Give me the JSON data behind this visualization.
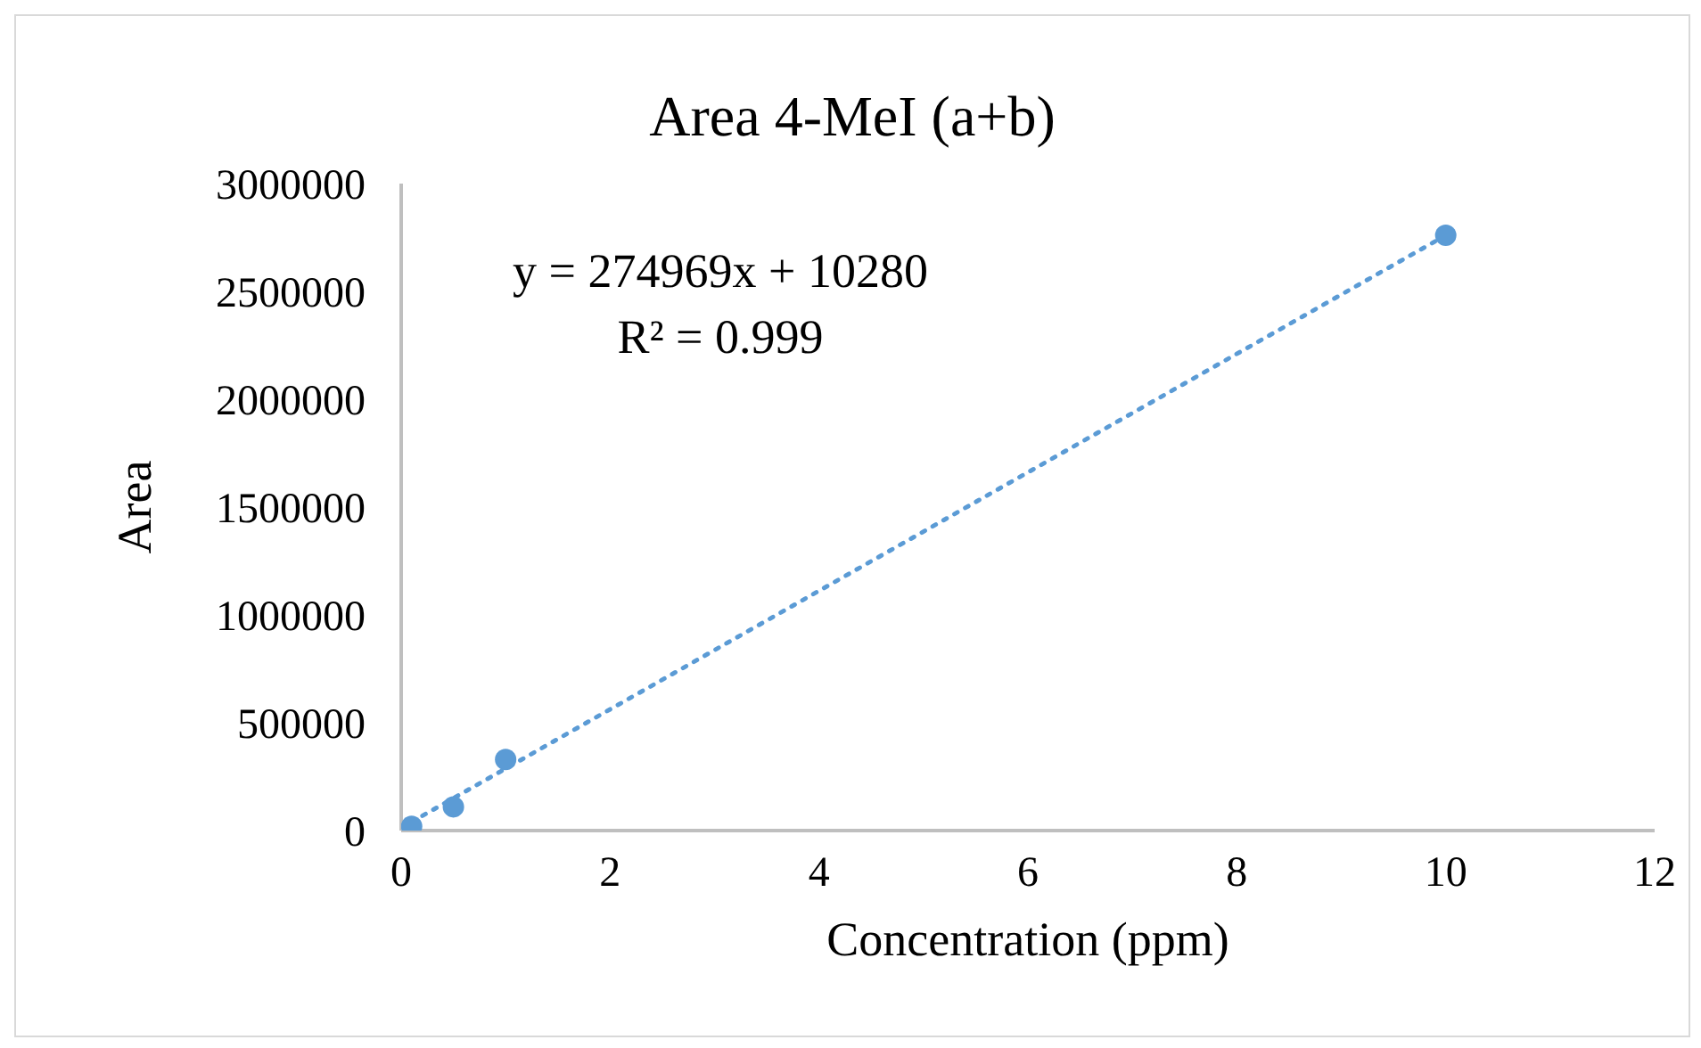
{
  "chart_data": {
    "type": "scatter",
    "title": "Area 4-MeI (a+b)",
    "xlabel": "Concentration (ppm)",
    "ylabel": "Area",
    "x": [
      0.1,
      0.5,
      1,
      10
    ],
    "series": [
      {
        "color": "#5b9bd5",
        "values": [
          20000,
          110000,
          330000,
          2760000
        ],
        "marker": "circle"
      },
      {
        "type": "line",
        "color": "#5b9bd5",
        "x": [
          0.1,
          10
        ],
        "values": [
          40000,
          2760000
        ],
        "marker": "none",
        "line_style": "dotted"
      }
    ],
    "xlim": [
      0,
      12
    ],
    "xticks": [
      0,
      2,
      4,
      6,
      8,
      10,
      12
    ],
    "ylim": [
      0,
      3000000
    ],
    "yticks": [
      0,
      500000,
      1000000,
      1500000,
      2000000,
      2500000,
      3000000
    ],
    "grid": false,
    "legend": false,
    "annotations": [
      "y = 274969x + 10280",
      "R² = 0.999"
    ]
  }
}
